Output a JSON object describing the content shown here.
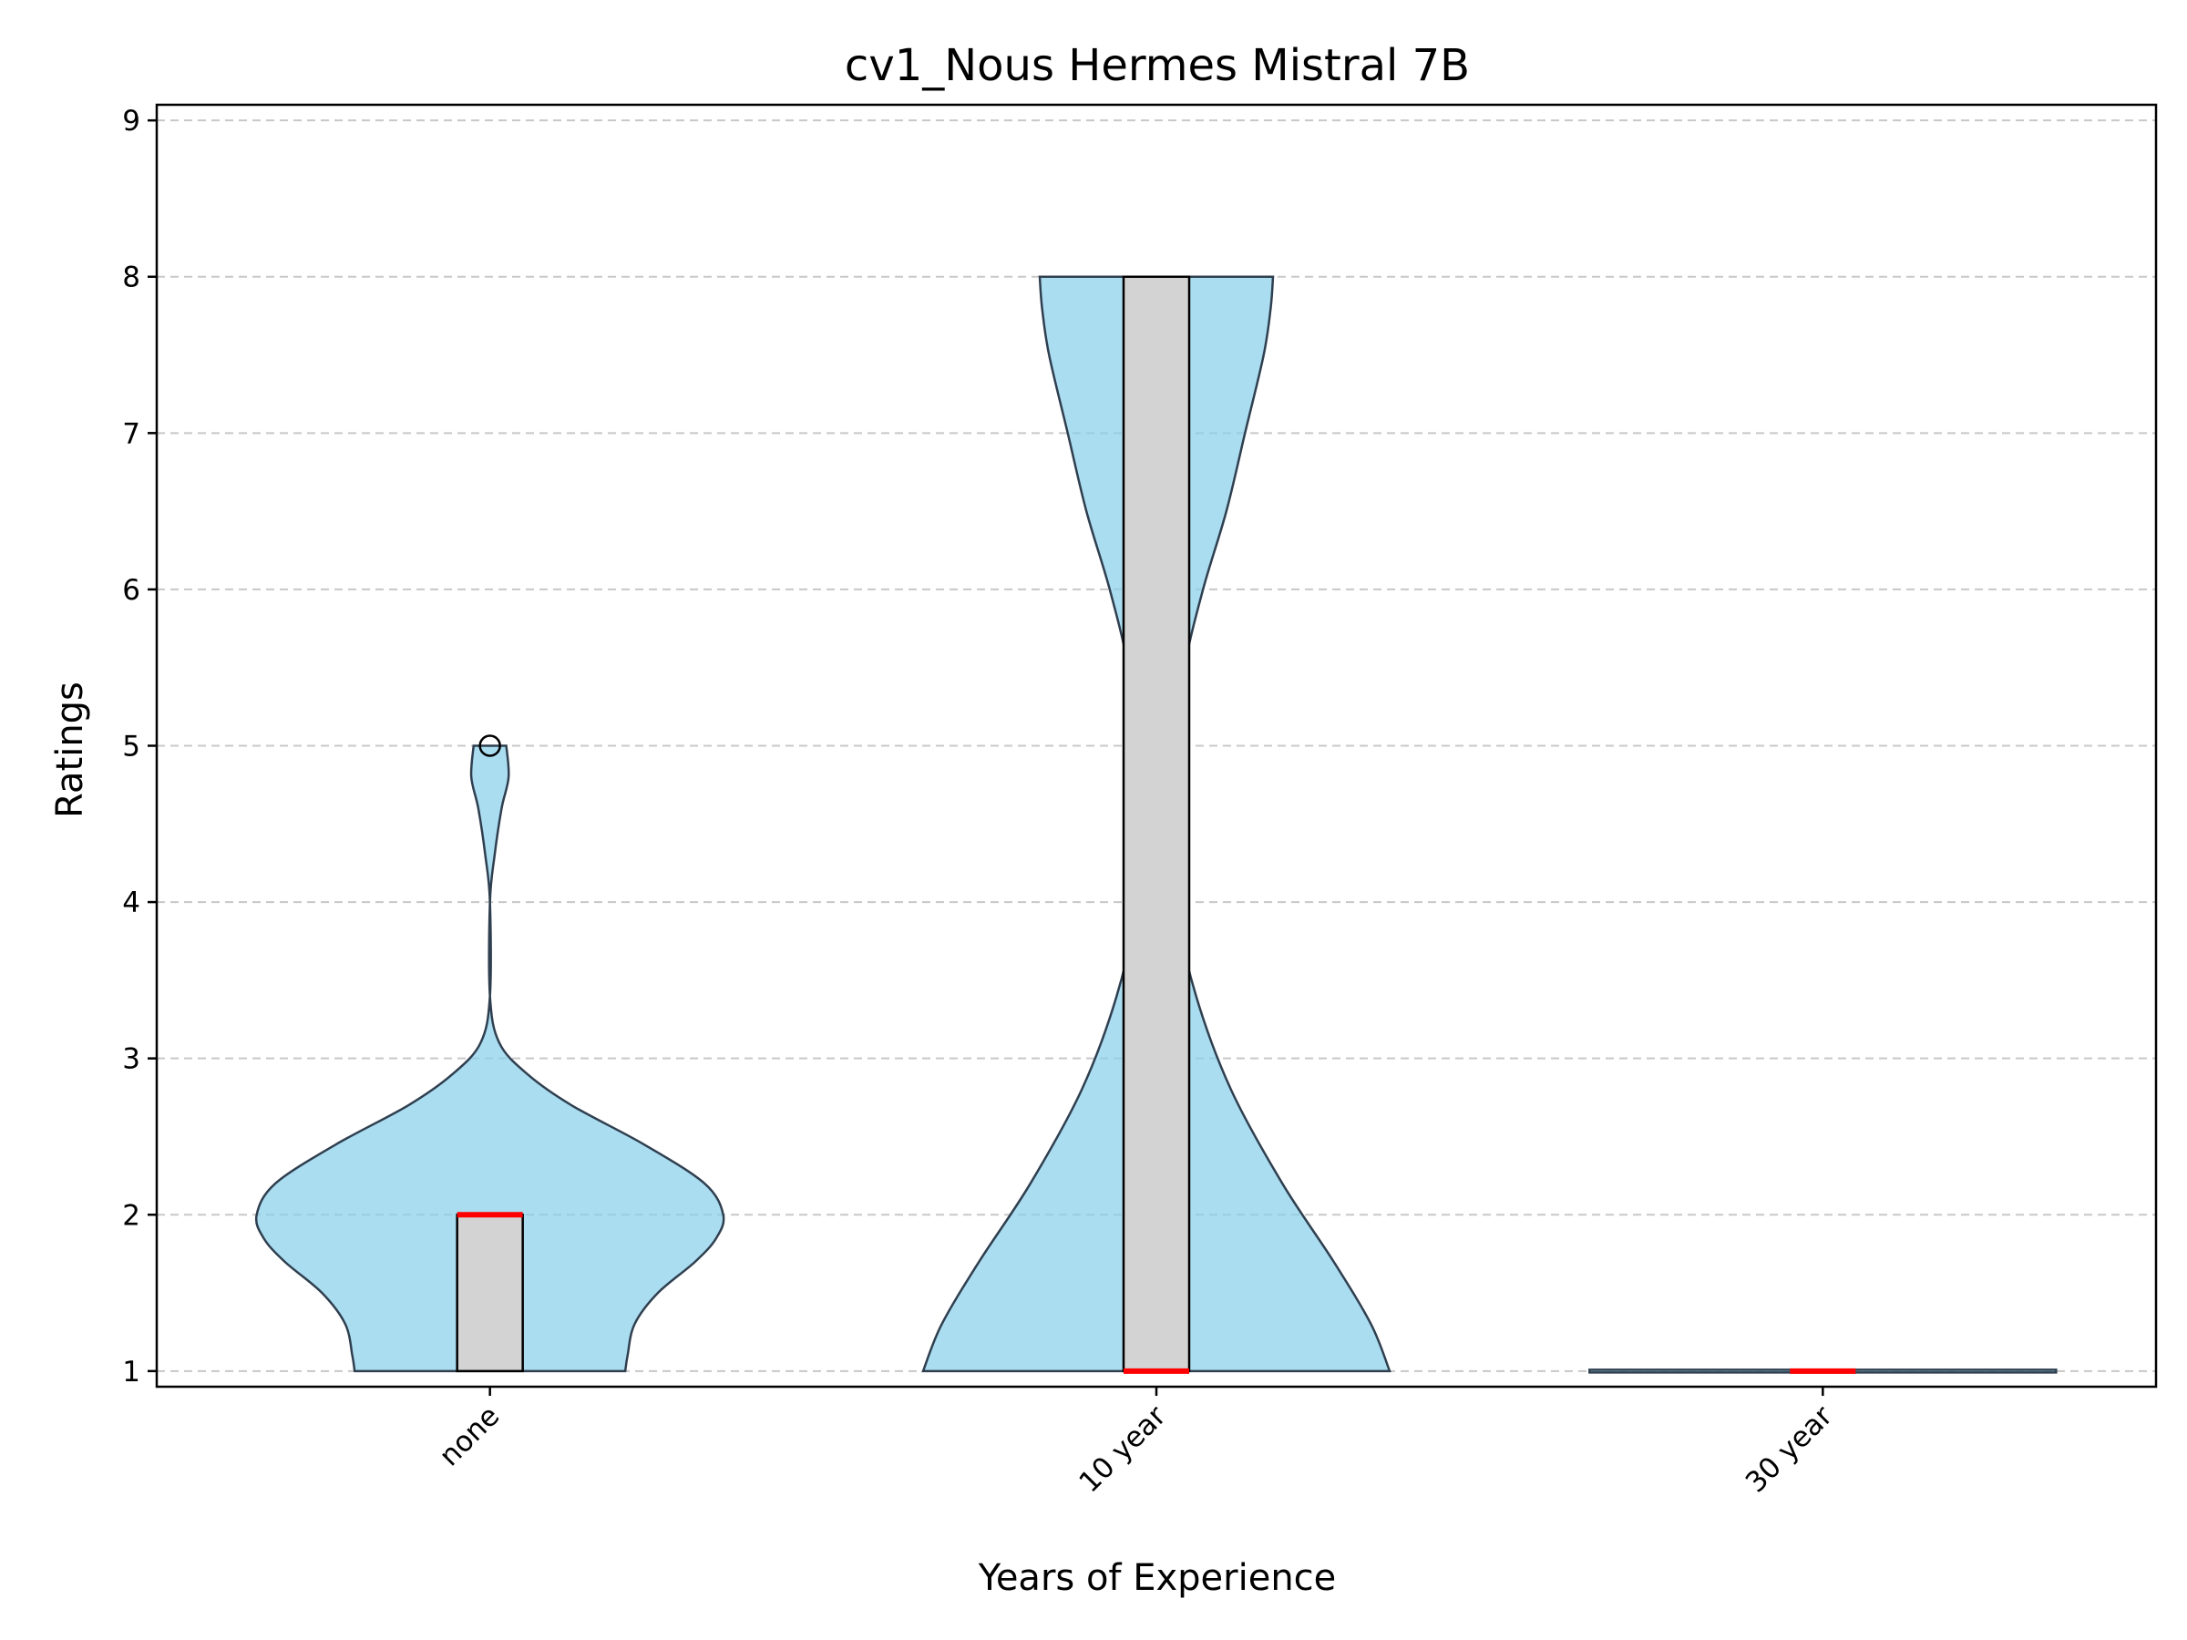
{
  "chart_data": {
    "type": "violin",
    "title": "cv1_Nous Hermes Mistral 7B",
    "xlabel": "Years of Experience",
    "ylabel": "Ratings",
    "categories": [
      "none",
      "10 year",
      "30 year"
    ],
    "ylim": [
      0.9,
      9.1
    ],
    "yticks": [
      1,
      2,
      3,
      4,
      5,
      6,
      7,
      8,
      9
    ],
    "grid": "y-dashed",
    "colors": {
      "violin_fill": "#87ceeb",
      "violin_edge": "#2f3f4f",
      "box_fill": "#d3d3d3",
      "median": "#ff0000",
      "grid": "#c8c8c8"
    },
    "series": [
      {
        "category": "none",
        "box": {
          "q1": 1,
          "median": 2,
          "q3": 2,
          "whisker_low": 1,
          "whisker_high": 2
        },
        "outliers": [
          5
        ],
        "density": [
          [
            1.0,
            0.58
          ],
          [
            1.1,
            0.59
          ],
          [
            1.3,
            0.62
          ],
          [
            1.5,
            0.72
          ],
          [
            1.7,
            0.88
          ],
          [
            1.85,
            0.97
          ],
          [
            2.0,
            1.0
          ],
          [
            2.2,
            0.92
          ],
          [
            2.45,
            0.66
          ],
          [
            2.7,
            0.35
          ],
          [
            2.9,
            0.16
          ],
          [
            3.1,
            0.04
          ],
          [
            3.4,
            0.0
          ],
          [
            4.0,
            0.0
          ],
          [
            4.3,
            0.02
          ],
          [
            4.6,
            0.05
          ],
          [
            4.8,
            0.08
          ],
          [
            5.0,
            0.07
          ]
        ]
      },
      {
        "category": "10 year",
        "box": {
          "q1": 1,
          "median": 1,
          "q3": 8,
          "whisker_low": 1,
          "whisker_high": 8
        },
        "outliers": [],
        "density": [
          [
            1.0,
            1.0
          ],
          [
            1.3,
            0.92
          ],
          [
            1.7,
            0.76
          ],
          [
            2.2,
            0.54
          ],
          [
            2.8,
            0.32
          ],
          [
            3.4,
            0.17
          ],
          [
            4.0,
            0.08
          ],
          [
            4.5,
            0.06
          ],
          [
            5.0,
            0.08
          ],
          [
            5.5,
            0.12
          ],
          [
            6.0,
            0.2
          ],
          [
            6.5,
            0.3
          ],
          [
            7.0,
            0.38
          ],
          [
            7.5,
            0.46
          ],
          [
            7.8,
            0.49
          ],
          [
            8.0,
            0.5
          ]
        ]
      },
      {
        "category": "30 year",
        "box": {
          "q1": 1,
          "median": 1,
          "q3": 1,
          "whisker_low": 1,
          "whisker_high": 1
        },
        "outliers": [],
        "density": [
          [
            1.0,
            1.0
          ]
        ]
      }
    ]
  }
}
